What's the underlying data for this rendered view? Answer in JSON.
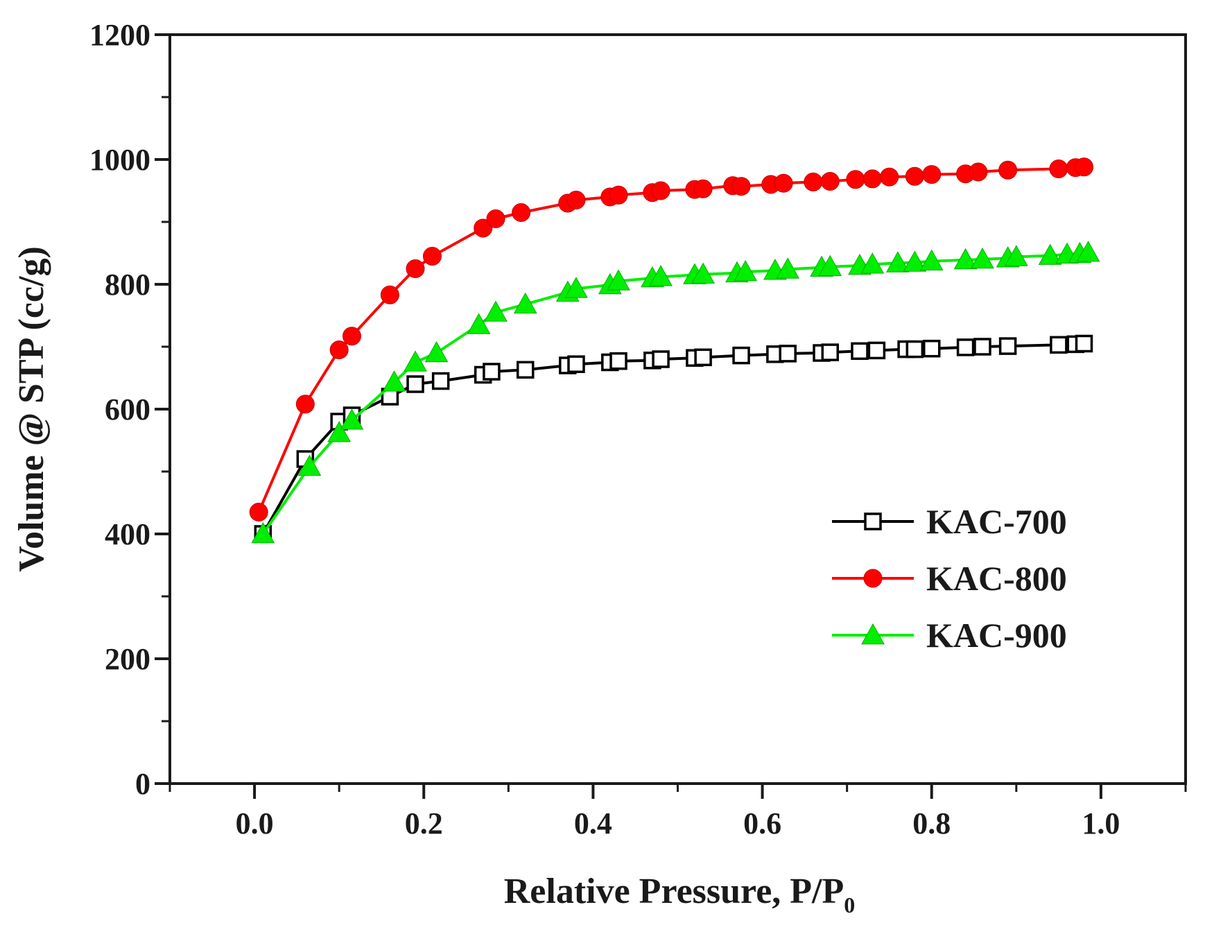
{
  "chart_data": {
    "type": "line",
    "title": "",
    "xlabel": "Relative Pressure, P/P",
    "xlabel_subscript": "0",
    "ylabel": "Volume @ STP (cc/g)",
    "xlim": [
      -0.1,
      1.1
    ],
    "ylim": [
      0,
      1200
    ],
    "xticks": [
      0.0,
      0.2,
      0.4,
      0.6,
      0.8,
      1.0
    ],
    "xtick_labels": [
      "0.0",
      "0.2",
      "0.4",
      "0.6",
      "0.8",
      "1.0"
    ],
    "yticks": [
      0,
      200,
      400,
      600,
      800,
      1000,
      1200
    ],
    "ytick_labels": [
      "0",
      "200",
      "400",
      "600",
      "800",
      "1000",
      "1200"
    ],
    "grid": false,
    "legend_position": "center-right",
    "series": [
      {
        "name": "KAC-700",
        "color": "#000000",
        "marker": "square-open",
        "x": [
          0.01,
          0.06,
          0.1,
          0.115,
          0.16,
          0.19,
          0.22,
          0.27,
          0.28,
          0.32,
          0.37,
          0.38,
          0.42,
          0.43,
          0.47,
          0.48,
          0.52,
          0.53,
          0.575,
          0.615,
          0.63,
          0.67,
          0.68,
          0.715,
          0.735,
          0.77,
          0.78,
          0.8,
          0.84,
          0.86,
          0.89,
          0.95,
          0.97,
          0.98
        ],
        "y": [
          400,
          520,
          580,
          590,
          620,
          640,
          645,
          655,
          660,
          663,
          670,
          672,
          675,
          677,
          678,
          680,
          682,
          683,
          686,
          688,
          689,
          690,
          691,
          693,
          694,
          696,
          696,
          697,
          699,
          700,
          701,
          703,
          704,
          705
        ]
      },
      {
        "name": "KAC-800",
        "color": "#ff0000",
        "marker": "circle-filled",
        "x": [
          0.005,
          0.06,
          0.1,
          0.115,
          0.16,
          0.19,
          0.21,
          0.27,
          0.285,
          0.315,
          0.37,
          0.38,
          0.42,
          0.43,
          0.47,
          0.48,
          0.52,
          0.53,
          0.565,
          0.575,
          0.61,
          0.625,
          0.66,
          0.68,
          0.71,
          0.73,
          0.75,
          0.78,
          0.8,
          0.84,
          0.855,
          0.89,
          0.95,
          0.97,
          0.98
        ],
        "y": [
          435,
          608,
          695,
          717,
          783,
          825,
          845,
          890,
          905,
          915,
          930,
          935,
          940,
          943,
          947,
          950,
          952,
          953,
          958,
          957,
          960,
          962,
          964,
          965,
          968,
          969,
          972,
          973,
          976,
          977,
          980,
          983,
          985,
          987,
          988
        ]
      },
      {
        "name": "KAC-900",
        "color": "#00ee00",
        "marker": "triangle-filled",
        "x": [
          0.01,
          0.065,
          0.1,
          0.115,
          0.165,
          0.19,
          0.215,
          0.265,
          0.285,
          0.32,
          0.37,
          0.38,
          0.42,
          0.43,
          0.47,
          0.48,
          0.52,
          0.53,
          0.57,
          0.58,
          0.615,
          0.63,
          0.67,
          0.68,
          0.715,
          0.73,
          0.76,
          0.78,
          0.8,
          0.84,
          0.86,
          0.89,
          0.9,
          0.94,
          0.96,
          0.975,
          0.985
        ],
        "y": [
          400,
          508,
          562,
          582,
          643,
          675,
          690,
          735,
          755,
          768,
          787,
          793,
          799,
          805,
          810,
          812,
          815,
          816,
          818,
          820,
          822,
          824,
          827,
          828,
          830,
          832,
          834,
          835,
          837,
          839,
          840,
          842,
          844,
          846,
          848,
          849,
          851
        ]
      }
    ]
  }
}
